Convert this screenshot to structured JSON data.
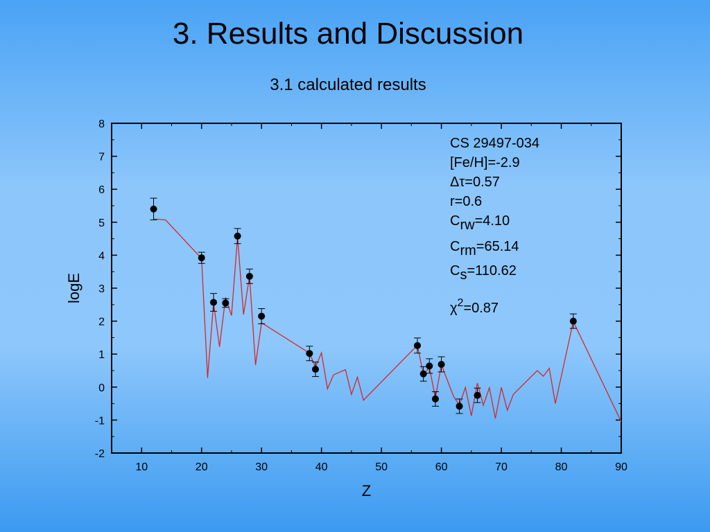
{
  "slide": {
    "title": "3. Results and Discussion",
    "subtitle": "3.1 calculated results"
  },
  "annotations": {
    "star": "CS 29497-034",
    "feh": "[Fe/H]=-2.9",
    "dtau": "Δτ=0.57",
    "r": "r=0.6",
    "crw_main": "C",
    "crw_sub": "rw",
    "crw_val": "=4.10",
    "crm_main": "C",
    "crm_sub": "rm",
    "crm_val": "=65.14",
    "cs_main": "C",
    "cs_sub": "s",
    "cs_val": "=110.62",
    "chi_main": "χ",
    "chi_sup": "2",
    "chi_val": "=0.87"
  },
  "colors": {
    "line": "#d6262b",
    "points": "#000000",
    "plot_bg": "#8ec7fb"
  },
  "chart_data": {
    "type": "scatter",
    "xlabel": "Z",
    "ylabel": "logE",
    "xlim": [
      5,
      90
    ],
    "ylim": [
      -2,
      8
    ],
    "xticks": [
      10,
      20,
      30,
      40,
      50,
      60,
      70,
      80,
      90
    ],
    "yticks": [
      -2,
      -1,
      0,
      1,
      2,
      3,
      4,
      5,
      6,
      7,
      8
    ],
    "grid": false,
    "legend": "none",
    "series": [
      {
        "kind": "observed",
        "points": [
          {
            "x": 12,
            "y": 5.4,
            "err": 0.33
          },
          {
            "x": 20,
            "y": 3.92,
            "err": 0.17
          },
          {
            "x": 22,
            "y": 2.57,
            "err": 0.27
          },
          {
            "x": 24,
            "y": 2.55,
            "err": 0.13
          },
          {
            "x": 26,
            "y": 4.58,
            "err": 0.23
          },
          {
            "x": 28,
            "y": 3.36,
            "err": 0.22
          },
          {
            "x": 30,
            "y": 2.15,
            "err": 0.23
          },
          {
            "x": 38,
            "y": 1.02,
            "err": 0.22
          },
          {
            "x": 39,
            "y": 0.54,
            "err": 0.22
          },
          {
            "x": 56,
            "y": 1.26,
            "err": 0.23
          },
          {
            "x": 57,
            "y": 0.4,
            "err": 0.22
          },
          {
            "x": 58,
            "y": 0.64,
            "err": 0.22
          },
          {
            "x": 59,
            "y": -0.36,
            "err": 0.22
          },
          {
            "x": 60,
            "y": 0.69,
            "err": 0.23
          },
          {
            "x": 63,
            "y": -0.58,
            "err": 0.22
          },
          {
            "x": 66,
            "y": -0.25,
            "err": 0.22
          },
          {
            "x": 82,
            "y": 2.0,
            "err": 0.22
          }
        ]
      },
      {
        "kind": "model",
        "points": [
          [
            12,
            5.1
          ],
          [
            14,
            5.07
          ],
          [
            20,
            3.9
          ],
          [
            21,
            0.28
          ],
          [
            22,
            2.55
          ],
          [
            23,
            1.22
          ],
          [
            24,
            2.72
          ],
          [
            25,
            2.17
          ],
          [
            26,
            4.55
          ],
          [
            27,
            2.2
          ],
          [
            28,
            3.36
          ],
          [
            29,
            0.67
          ],
          [
            30,
            1.95
          ],
          [
            38,
            1.03
          ],
          [
            39,
            0.6
          ],
          [
            40,
            1.04
          ],
          [
            41,
            -0.05
          ],
          [
            42,
            0.37
          ],
          [
            44,
            0.53
          ],
          [
            45,
            -0.22
          ],
          [
            46,
            0.3
          ],
          [
            47,
            -0.4
          ],
          [
            56,
            1.27
          ],
          [
            57,
            0.38
          ],
          [
            58,
            0.6
          ],
          [
            59,
            -0.33
          ],
          [
            60,
            0.68
          ],
          [
            62,
            -0.27
          ],
          [
            63,
            -0.55
          ],
          [
            64,
            -0.01
          ],
          [
            65,
            -0.87
          ],
          [
            66,
            0.12
          ],
          [
            67,
            -0.55
          ],
          [
            68,
            -0.02
          ],
          [
            69,
            -0.95
          ],
          [
            70,
            -0.01
          ],
          [
            71,
            -0.7
          ],
          [
            72,
            -0.22
          ],
          [
            76,
            0.5
          ],
          [
            77,
            0.33
          ],
          [
            78,
            0.57
          ],
          [
            79,
            -0.5
          ],
          [
            82,
            1.99
          ],
          [
            90,
            -1.05
          ]
        ]
      }
    ]
  }
}
